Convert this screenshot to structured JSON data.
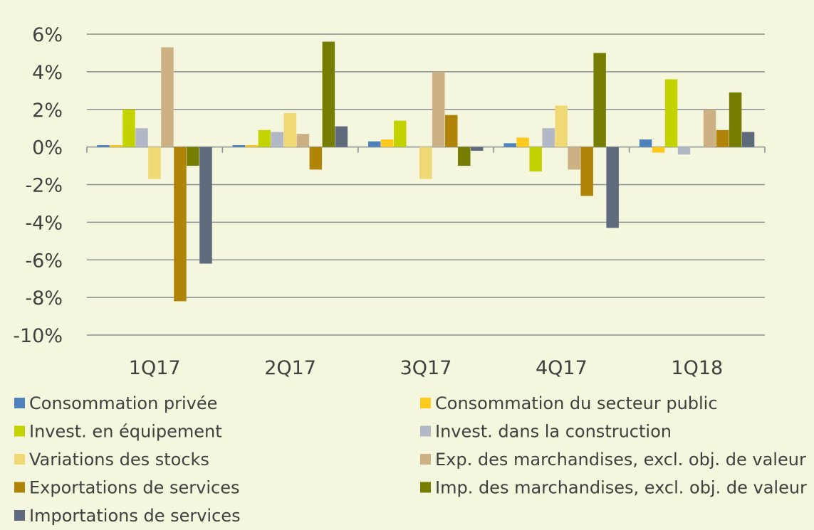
{
  "chart_data": {
    "type": "bar",
    "title": "",
    "xlabel": "",
    "ylabel": "",
    "categories": [
      "1Q17",
      "2Q17",
      "3Q17",
      "4Q17",
      "1Q18"
    ],
    "ylim": [
      -10,
      6
    ],
    "y_ticks": [
      6,
      4,
      2,
      0,
      -2,
      -4,
      -6,
      -8,
      -10
    ],
    "y_tick_labels": [
      "6%",
      "4%",
      "2%",
      "0%",
      "-2%",
      "-4%",
      "-6%",
      "-8%",
      "-10%"
    ],
    "grid": true,
    "legend_position": "bottom",
    "series": [
      {
        "name": "Consommation privée",
        "color": "#4f81bd",
        "values": [
          0.1,
          0.1,
          0.3,
          0.2,
          0.4
        ]
      },
      {
        "name": "Consommation du secteur public",
        "color": "#ffc91d",
        "values": [
          0.1,
          0.1,
          0.4,
          0.5,
          -0.3
        ]
      },
      {
        "name": "Invest. en équipement",
        "color": "#c3d300",
        "values": [
          2.0,
          0.9,
          1.4,
          -1.3,
          3.6
        ]
      },
      {
        "name": "Invest. dans la construction",
        "color": "#b3b8c6",
        "values": [
          1.0,
          0.8,
          0.0,
          1.0,
          -0.4
        ]
      },
      {
        "name": "Variations des stocks",
        "color": "#f0d875",
        "values": [
          -1.7,
          1.8,
          -1.7,
          2.2,
          0.0
        ]
      },
      {
        "name": "Exp. des marchandises, excl. obj. de valeur",
        "color": "#cdb185",
        "values": [
          5.3,
          0.7,
          4.0,
          -1.2,
          2.0
        ]
      },
      {
        "name": "Exportations de services",
        "color": "#b08409",
        "values": [
          -8.2,
          -1.2,
          1.7,
          -2.6,
          0.9
        ]
      },
      {
        "name": "Imp. des marchandises, excl. obj. de valeur",
        "color": "#767e01",
        "values": [
          -1.0,
          5.6,
          -1.0,
          5.0,
          2.9
        ]
      },
      {
        "name": "Importations de services",
        "color": "#5f6b7d",
        "values": [
          -6.2,
          1.1,
          -0.2,
          -4.3,
          0.8
        ]
      }
    ]
  }
}
